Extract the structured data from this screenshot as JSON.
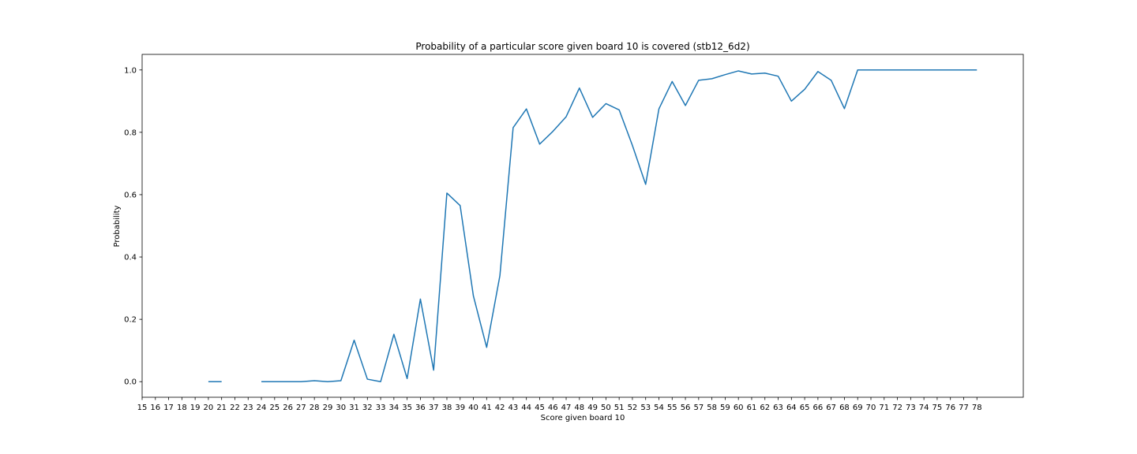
{
  "chart_data": {
    "type": "line",
    "title": "Probability of a particular score given board 10 is covered (stb12_6d2)",
    "xlabel": "Score given board 10",
    "ylabel": "Probability",
    "xlim": [
      15,
      81.5
    ],
    "ylim": [
      -0.05,
      1.05
    ],
    "x_ticks": [
      15,
      16,
      17,
      18,
      19,
      20,
      21,
      22,
      23,
      24,
      25,
      26,
      27,
      28,
      29,
      30,
      31,
      32,
      33,
      34,
      35,
      36,
      37,
      38,
      39,
      40,
      41,
      42,
      43,
      44,
      45,
      46,
      47,
      48,
      49,
      50,
      51,
      52,
      53,
      54,
      55,
      56,
      57,
      58,
      59,
      60,
      61,
      62,
      63,
      64,
      65,
      66,
      67,
      68,
      69,
      70,
      71,
      72,
      73,
      74,
      75,
      76,
      77,
      78
    ],
    "y_ticks": [
      0.0,
      0.2,
      0.4,
      0.6,
      0.8,
      1.0
    ],
    "y_tick_labels": [
      "0.0",
      "0.2",
      "0.4",
      "0.6",
      "0.8",
      "1.0"
    ],
    "grid": false,
    "line_color": "#1f77b4",
    "series": [
      {
        "x": [
          20,
          21,
          22,
          23,
          24,
          25,
          26,
          27,
          28,
          29,
          30,
          31,
          32,
          33,
          34,
          35,
          36,
          37,
          38,
          39,
          40,
          41,
          42,
          43,
          44,
          45,
          46,
          47,
          48,
          49,
          50,
          51,
          52,
          53,
          54,
          55,
          56,
          57,
          58,
          59,
          60,
          61,
          62,
          63,
          64,
          65,
          66,
          67,
          68,
          69,
          70,
          71,
          72,
          73,
          74,
          75,
          76,
          77,
          78
        ],
        "y": [
          0.0,
          0.0,
          null,
          null,
          0.0,
          0.0,
          0.0,
          0.0,
          0.003,
          0.0,
          0.003,
          0.133,
          0.008,
          0.0,
          0.152,
          0.01,
          0.265,
          0.037,
          0.605,
          0.565,
          0.275,
          0.11,
          0.34,
          0.815,
          0.875,
          0.762,
          0.803,
          0.85,
          0.942,
          0.848,
          0.892,
          0.872,
          0.758,
          0.633,
          0.875,
          0.963,
          0.886,
          0.967,
          0.972,
          0.985,
          0.997,
          0.987,
          0.99,
          0.98,
          0.9,
          0.938,
          0.995,
          0.967,
          0.876,
          1.0,
          1.0,
          1.0,
          1.0,
          1.0,
          1.0,
          1.0,
          1.0,
          1.0,
          1.0
        ]
      }
    ]
  }
}
